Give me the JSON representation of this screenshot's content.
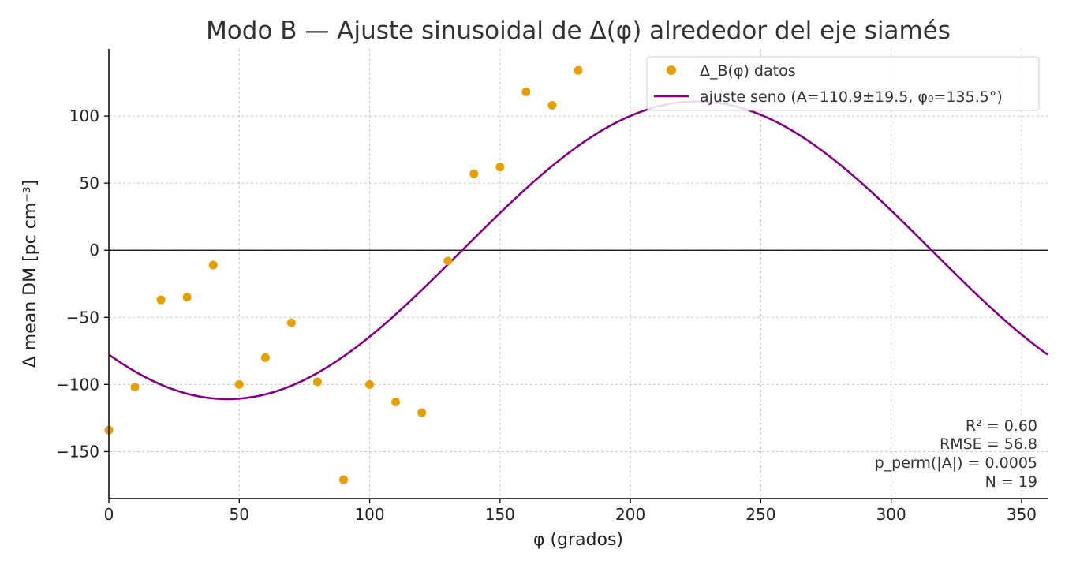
{
  "chart_data": {
    "type": "scatter",
    "title": "Modo B — Ajuste sinusoidal de Δ(φ) alrededor del eje siamés",
    "xlabel": "φ (grados)",
    "ylabel": "Δ mean DM [pc cm⁻³]",
    "xlim": [
      0,
      360
    ],
    "ylim": [
      -185,
      150
    ],
    "xticks": [
      0,
      50,
      100,
      150,
      200,
      250,
      300,
      350
    ],
    "yticks": [
      -150,
      -100,
      -50,
      0,
      50,
      100
    ],
    "xtick_labels": [
      "0",
      "50",
      "100",
      "150",
      "200",
      "250",
      "300",
      "350"
    ],
    "ytick_labels": [
      "−150",
      "−100",
      "−50",
      "0",
      "50",
      "100"
    ],
    "grid": true,
    "zero_line": true,
    "legend_position": "top-right",
    "series": [
      {
        "name": "Δ_B(φ) datos",
        "kind": "scatter",
        "color": "#E69F00",
        "x": [
          0,
          10,
          20,
          30,
          40,
          50,
          60,
          70,
          80,
          90,
          100,
          110,
          120,
          130,
          140,
          150,
          160,
          170,
          180
        ],
        "y": [
          -134,
          -102,
          -37,
          -35,
          -11,
          -100,
          -80,
          -54,
          -98,
          -171,
          -100,
          -113,
          -121,
          -8,
          57,
          62,
          118,
          108,
          134
        ]
      },
      {
        "name": "ajuste seno (A=110.9±19.5, φ₀=135.5°)",
        "kind": "line",
        "color": "#800080",
        "amplitude": 110.9,
        "phase_deg": 135.5
      }
    ],
    "annotations": [
      "R² = 0.60",
      "RMSE = 56.8",
      "p_perm(|A|) = 0.0005",
      "N = 19"
    ]
  }
}
